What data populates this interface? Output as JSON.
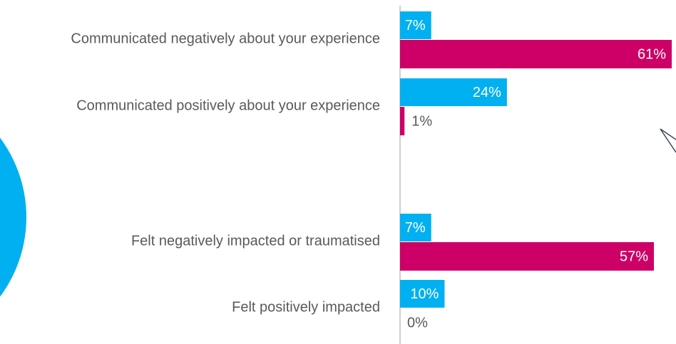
{
  "chart_data": {
    "type": "bar",
    "categories": [
      "Communicated negatively about your experience",
      "Communicated positively about your experience",
      "Felt negatively impacted or traumatised",
      "Felt positively impacted"
    ],
    "series": [
      {
        "color": "#00b0f0",
        "values": [
          7,
          24,
          7,
          10
        ],
        "value_labels": [
          "7%",
          "24%",
          "7%",
          "10%"
        ]
      },
      {
        "color": "#cc0066",
        "values": [
          61,
          1,
          57,
          0
        ],
        "value_labels": [
          "61%",
          "1%",
          "57%",
          "0%"
        ]
      }
    ]
  }
}
